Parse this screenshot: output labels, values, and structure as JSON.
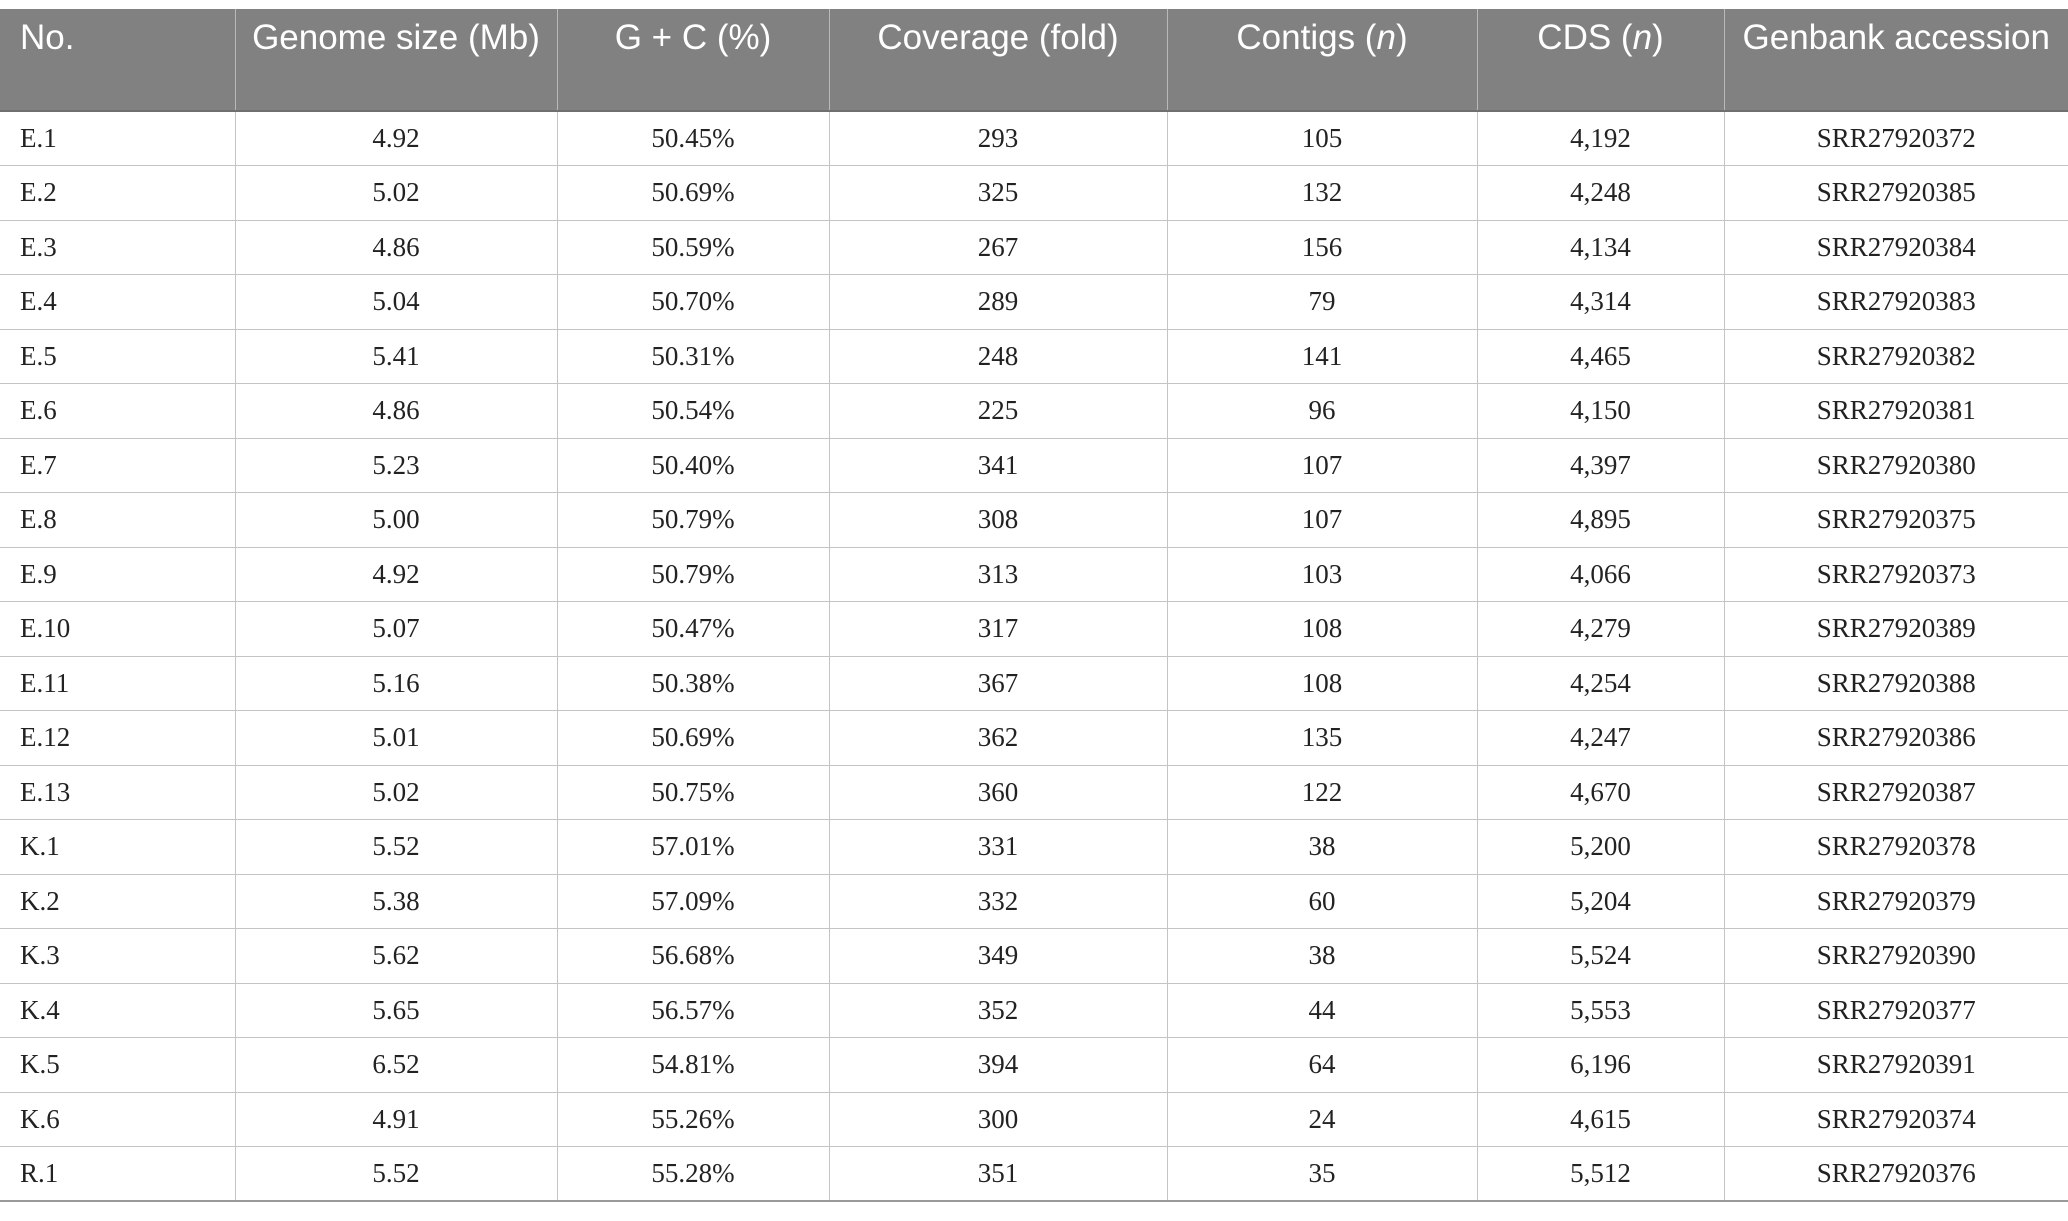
{
  "table": {
    "headers": [
      {
        "text": "No.",
        "unit": ""
      },
      {
        "text": "Genome size (Mb)",
        "unit": ""
      },
      {
        "text": "G + C (%)",
        "unit": ""
      },
      {
        "text": "Coverage (fold)",
        "unit": ""
      },
      {
        "pre": "Contigs (",
        "it": "n",
        "post": ")"
      },
      {
        "pre": "CDS (",
        "it": "n",
        "post": ")"
      },
      {
        "text": "Genbank accession",
        "unit": ""
      }
    ],
    "rows": [
      [
        "E.1",
        "4.92",
        "50.45%",
        "293",
        "105",
        "4,192",
        "SRR27920372"
      ],
      [
        "E.2",
        "5.02",
        "50.69%",
        "325",
        "132",
        "4,248",
        "SRR27920385"
      ],
      [
        "E.3",
        "4.86",
        "50.59%",
        "267",
        "156",
        "4,134",
        "SRR27920384"
      ],
      [
        "E.4",
        "5.04",
        "50.70%",
        "289",
        "79",
        "4,314",
        "SRR27920383"
      ],
      [
        "E.5",
        "5.41",
        "50.31%",
        "248",
        "141",
        "4,465",
        "SRR27920382"
      ],
      [
        "E.6",
        "4.86",
        "50.54%",
        "225",
        "96",
        "4,150",
        "SRR27920381"
      ],
      [
        "E.7",
        "5.23",
        "50.40%",
        "341",
        "107",
        "4,397",
        "SRR27920380"
      ],
      [
        "E.8",
        "5.00",
        "50.79%",
        "308",
        "107",
        "4,895",
        "SRR27920375"
      ],
      [
        "E.9",
        "4.92",
        "50.79%",
        "313",
        "103",
        "4,066",
        "SRR27920373"
      ],
      [
        "E.10",
        "5.07",
        "50.47%",
        "317",
        "108",
        "4,279",
        "SRR27920389"
      ],
      [
        "E.11",
        "5.16",
        "50.38%",
        "367",
        "108",
        "4,254",
        "SRR27920388"
      ],
      [
        "E.12",
        "5.01",
        "50.69%",
        "362",
        "135",
        "4,247",
        "SRR27920386"
      ],
      [
        "E.13",
        "5.02",
        "50.75%",
        "360",
        "122",
        "4,670",
        "SRR27920387"
      ],
      [
        "K.1",
        "5.52",
        "57.01%",
        "331",
        "38",
        "5,200",
        "SRR27920378"
      ],
      [
        "K.2",
        "5.38",
        "57.09%",
        "332",
        "60",
        "5,204",
        "SRR27920379"
      ],
      [
        "K.3",
        "5.62",
        "56.68%",
        "349",
        "38",
        "5,524",
        "SRR27920390"
      ],
      [
        "K.4",
        "5.65",
        "56.57%",
        "352",
        "44",
        "5,553",
        "SRR27920377"
      ],
      [
        "K.5",
        "6.52",
        "54.81%",
        "394",
        "64",
        "6,196",
        "SRR27920391"
      ],
      [
        "K.6",
        "4.91",
        "55.26%",
        "300",
        "24",
        "4,615",
        "SRR27920374"
      ],
      [
        "R.1",
        "5.52",
        "55.28%",
        "351",
        "35",
        "5,512",
        "SRR27920376"
      ]
    ]
  }
}
